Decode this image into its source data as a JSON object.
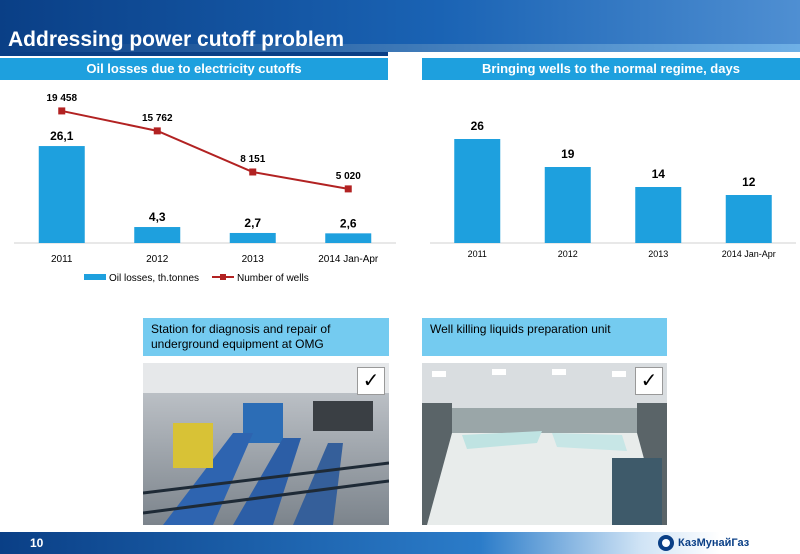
{
  "title": "Addressing power cutoff problem",
  "page_number": "10",
  "logo_text": "КазМунайГаз",
  "left_panel": {
    "header": "Oil losses due to electricity cutoffs",
    "legend": [
      "Oil losses, th.tonnes",
      "Number of wells"
    ]
  },
  "right_panel": {
    "header": "Bringing wells to the normal regime, days"
  },
  "captions": {
    "left": "Station for diagnosis and repair of underground equipment  at OMG",
    "right": "Well killing liquids preparation unit"
  },
  "check_mark": "✓",
  "colors": {
    "bar": "#1ea0de",
    "line": "#b22222",
    "header": "#1ea0de",
    "caption": "#74cbf0",
    "brand": "#0a3f86"
  },
  "chart_data": [
    {
      "type": "bar",
      "categories": [
        "2011",
        "2012",
        "2013",
        "2014 Jan-Apr"
      ],
      "series": [
        {
          "name": "Oil losses, th.tonnes",
          "type": "bar",
          "values": [
            26.1,
            4.3,
            2.7,
            2.6
          ],
          "labels": [
            "26,1",
            "4,3",
            "2,7",
            "2,6"
          ]
        },
        {
          "name": "Number of wells",
          "type": "line",
          "values": [
            19458,
            15762,
            8151,
            5020
          ],
          "labels": [
            "19 458",
            "15 762",
            "8 151",
            "5 020"
          ]
        }
      ],
      "title": "Oil losses due to electricity cutoffs",
      "legend": "bottom"
    },
    {
      "type": "bar",
      "categories": [
        "2011",
        "2012",
        "2013",
        "2014 Jan-Apr"
      ],
      "values": [
        26,
        19,
        14,
        12
      ],
      "labels": [
        "26",
        "19",
        "14",
        "12"
      ],
      "title": "Bringing wells to the normal regime, days"
    }
  ]
}
